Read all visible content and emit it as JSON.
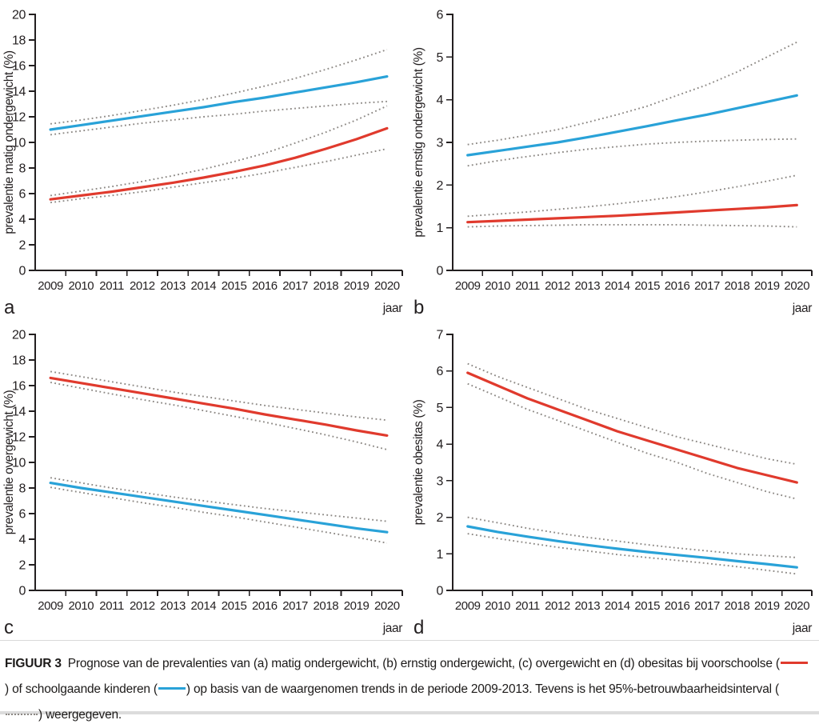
{
  "colors": {
    "preschool_red": "#e03a2d",
    "school_blue": "#29a2d8",
    "ci_gray": "#8c8884",
    "axis_black": "#231f20"
  },
  "caption": {
    "label": "FIGUUR 3",
    "part1": "Prognose van de prevalenties van (a) matig ondergewicht, (b) ernstig ondergewicht, (c) overgewicht en (d) obesitas bij voorschoolse (",
    "part2": ") of schoolgaande kinderen (",
    "part3": ") op basis van de waargenomen trends in de periode 2009-2013. Tevens is het 95%-betrouwbaarheidsinterval (",
    "part4": ") weergegeven."
  },
  "chart_data": [
    {
      "type": "line",
      "panel": "a",
      "ylabel": "prevalentie matig ondergewicht (%)",
      "xlabel": "jaar",
      "x": [
        2009,
        2010,
        2011,
        2012,
        2013,
        2014,
        2015,
        2016,
        2017,
        2018,
        2019,
        2020
      ],
      "ylim": [
        0,
        20
      ],
      "ystep": 2,
      "grid": false,
      "series": [
        {
          "name": "schoolgaande kinderen 95%-BI boven",
          "color": "ci",
          "style": "dotted",
          "values": [
            11.45,
            11.75,
            12.1,
            12.5,
            12.9,
            13.35,
            13.85,
            14.4,
            15.0,
            15.7,
            16.45,
            17.25
          ]
        },
        {
          "name": "schoolgaande kinderen 95%-BI onder",
          "color": "ci",
          "style": "dotted",
          "values": [
            10.6,
            10.9,
            11.2,
            11.5,
            11.75,
            12.0,
            12.2,
            12.45,
            12.65,
            12.85,
            13.05,
            13.2
          ]
        },
        {
          "name": "voorschoolse kinderen 95%-BI boven",
          "color": "ci",
          "style": "dotted",
          "values": [
            5.85,
            6.2,
            6.55,
            6.95,
            7.4,
            7.9,
            8.5,
            9.15,
            9.95,
            10.8,
            11.75,
            12.85
          ]
        },
        {
          "name": "voorschoolse kinderen 95%-BI onder",
          "color": "ci",
          "style": "dotted",
          "values": [
            5.3,
            5.6,
            5.85,
            6.15,
            6.5,
            6.85,
            7.2,
            7.6,
            8.05,
            8.5,
            9.0,
            9.5
          ]
        },
        {
          "name": "schoolgaande kinderen",
          "color": "blue",
          "style": "solid",
          "values": [
            11.0,
            11.35,
            11.7,
            12.05,
            12.4,
            12.75,
            13.15,
            13.5,
            13.9,
            14.3,
            14.7,
            15.15
          ]
        },
        {
          "name": "voorschoolse kinderen",
          "color": "red",
          "style": "solid",
          "values": [
            5.55,
            5.85,
            6.15,
            6.5,
            6.85,
            7.25,
            7.7,
            8.2,
            8.8,
            9.5,
            10.25,
            11.1
          ]
        }
      ]
    },
    {
      "type": "line",
      "panel": "b",
      "ylabel": "prevalentie ernstig ondergewicht (%)",
      "xlabel": "jaar",
      "x": [
        2009,
        2010,
        2011,
        2012,
        2013,
        2014,
        2015,
        2016,
        2017,
        2018,
        2019,
        2020
      ],
      "ylim": [
        0,
        6
      ],
      "ystep": 1,
      "grid": false,
      "series": [
        {
          "name": "schoolgaande kinderen 95%-BI boven",
          "color": "ci",
          "style": "dotted",
          "values": [
            2.95,
            3.05,
            3.17,
            3.3,
            3.47,
            3.65,
            3.85,
            4.1,
            4.35,
            4.65,
            5.0,
            5.35
          ]
        },
        {
          "name": "schoolgaande kinderen 95%-BI onder",
          "color": "ci",
          "style": "dotted",
          "values": [
            2.45,
            2.57,
            2.67,
            2.76,
            2.84,
            2.9,
            2.96,
            3.0,
            3.03,
            3.05,
            3.07,
            3.08
          ]
        },
        {
          "name": "voorschoolse kinderen 95%-BI boven",
          "color": "ci",
          "style": "dotted",
          "values": [
            1.27,
            1.32,
            1.37,
            1.43,
            1.49,
            1.56,
            1.64,
            1.73,
            1.84,
            1.96,
            2.09,
            2.23
          ]
        },
        {
          "name": "voorschoolse kinderen 95%-BI onder",
          "color": "ci",
          "style": "dotted",
          "values": [
            1.02,
            1.04,
            1.05,
            1.06,
            1.07,
            1.07,
            1.07,
            1.07,
            1.06,
            1.05,
            1.04,
            1.02
          ]
        },
        {
          "name": "schoolgaande kinderen",
          "color": "blue",
          "style": "solid",
          "values": [
            2.7,
            2.8,
            2.9,
            3.0,
            3.12,
            3.25,
            3.38,
            3.52,
            3.65,
            3.8,
            3.95,
            4.1
          ]
        },
        {
          "name": "voorschoolse kinderen",
          "color": "red",
          "style": "solid",
          "values": [
            1.13,
            1.16,
            1.19,
            1.22,
            1.25,
            1.28,
            1.32,
            1.36,
            1.4,
            1.44,
            1.48,
            1.53
          ]
        }
      ]
    },
    {
      "type": "line",
      "panel": "c",
      "ylabel": "prevalentie overgewicht (%)",
      "xlabel": "jaar",
      "x": [
        2009,
        2010,
        2011,
        2012,
        2013,
        2014,
        2015,
        2016,
        2017,
        2018,
        2019,
        2020
      ],
      "ylim": [
        0,
        20
      ],
      "ystep": 2,
      "grid": false,
      "series": [
        {
          "name": "voorschoolse kinderen 95%-BI boven",
          "color": "ci",
          "style": "dotted",
          "values": [
            17.1,
            16.7,
            16.3,
            15.9,
            15.5,
            15.15,
            14.8,
            14.45,
            14.15,
            13.85,
            13.55,
            13.3
          ]
        },
        {
          "name": "voorschoolse kinderen 95%-BI onder",
          "color": "ci",
          "style": "dotted",
          "values": [
            16.25,
            15.8,
            15.35,
            14.9,
            14.5,
            14.05,
            13.6,
            13.15,
            12.65,
            12.15,
            11.6,
            11.0
          ]
        },
        {
          "name": "schoolgaande kinderen 95%-BI boven",
          "color": "ci",
          "style": "dotted",
          "values": [
            8.8,
            8.4,
            8.0,
            7.65,
            7.3,
            7.0,
            6.7,
            6.4,
            6.15,
            5.9,
            5.65,
            5.4
          ]
        },
        {
          "name": "schoolgaande kinderen 95%-BI onder",
          "color": "ci",
          "style": "dotted",
          "values": [
            8.05,
            7.65,
            7.25,
            6.85,
            6.5,
            6.1,
            5.75,
            5.35,
            4.95,
            4.55,
            4.15,
            3.7
          ]
        },
        {
          "name": "voorschoolse kinderen",
          "color": "red",
          "style": "solid",
          "values": [
            16.6,
            16.2,
            15.8,
            15.4,
            15.0,
            14.6,
            14.2,
            13.75,
            13.35,
            12.95,
            12.5,
            12.1
          ]
        },
        {
          "name": "schoolgaande kinderen",
          "color": "blue",
          "style": "solid",
          "values": [
            8.4,
            8.0,
            7.65,
            7.3,
            6.95,
            6.6,
            6.25,
            5.9,
            5.55,
            5.2,
            4.85,
            4.55
          ]
        }
      ]
    },
    {
      "type": "line",
      "panel": "d",
      "ylabel": "prevalentie obesitas (%)",
      "xlabel": "jaar",
      "x": [
        2009,
        2010,
        2011,
        2012,
        2013,
        2014,
        2015,
        2016,
        2017,
        2018,
        2019,
        2020
      ],
      "ylim": [
        0,
        7
      ],
      "ystep": 1,
      "grid": false,
      "series": [
        {
          "name": "voorschoolse kinderen 95%-BI boven",
          "color": "ci",
          "style": "dotted",
          "values": [
            6.2,
            5.85,
            5.55,
            5.25,
            4.95,
            4.7,
            4.45,
            4.2,
            4.0,
            3.8,
            3.6,
            3.45
          ]
        },
        {
          "name": "voorschoolse kinderen 95%-BI onder",
          "color": "ci",
          "style": "dotted",
          "values": [
            5.65,
            5.3,
            4.95,
            4.65,
            4.35,
            4.05,
            3.75,
            3.5,
            3.2,
            2.95,
            2.7,
            2.5
          ]
        },
        {
          "name": "schoolgaande kinderen 95%-BI boven",
          "color": "ci",
          "style": "dotted",
          "values": [
            2.0,
            1.85,
            1.7,
            1.57,
            1.45,
            1.35,
            1.25,
            1.16,
            1.08,
            1.0,
            0.95,
            0.9
          ]
        },
        {
          "name": "schoolgaande kinderen 95%-BI onder",
          "color": "ci",
          "style": "dotted",
          "values": [
            1.55,
            1.42,
            1.3,
            1.18,
            1.08,
            0.98,
            0.9,
            0.82,
            0.74,
            0.65,
            0.55,
            0.45
          ]
        },
        {
          "name": "voorschoolse kinderen",
          "color": "red",
          "style": "solid",
          "values": [
            5.95,
            5.6,
            5.25,
            4.95,
            4.65,
            4.35,
            4.1,
            3.85,
            3.6,
            3.35,
            3.15,
            2.95
          ]
        },
        {
          "name": "schoolgaande kinderen",
          "color": "blue",
          "style": "solid",
          "values": [
            1.75,
            1.6,
            1.47,
            1.35,
            1.24,
            1.14,
            1.05,
            0.97,
            0.89,
            0.8,
            0.72,
            0.63
          ]
        }
      ]
    }
  ]
}
